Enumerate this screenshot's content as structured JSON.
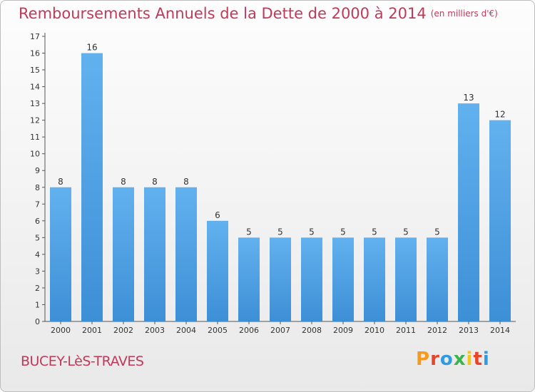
{
  "chart_data": {
    "type": "bar",
    "title": "Remboursements Annuels de la Dette de 2000 à 2014",
    "unit": "(en milliers d'€)",
    "categories": [
      "2000",
      "2001",
      "2002",
      "2003",
      "2004",
      "2005",
      "2006",
      "2007",
      "2008",
      "2009",
      "2010",
      "2011",
      "2012",
      "2013",
      "2014"
    ],
    "values": [
      8,
      16,
      8,
      8,
      8,
      6,
      5,
      5,
      5,
      5,
      5,
      5,
      5,
      13,
      12
    ],
    "yticks": [
      "0",
      "1",
      "2",
      "3",
      "4",
      "5",
      "6",
      "7",
      "8",
      "9",
      "10",
      "11",
      "12",
      "13",
      "14",
      "15",
      "16",
      "17"
    ],
    "ylim": [
      0,
      17
    ],
    "grid": false,
    "bar_color": "#3d8fd6"
  },
  "footer": {
    "place": "BUCEY-LèS-TRAVES",
    "logo_letters": [
      "P",
      "r",
      "o",
      "x",
      "i",
      "t",
      "i"
    ],
    "logo_colors": [
      "#f59a1e",
      "#e8442b",
      "#2f9be0",
      "#3bb54a",
      "#f5c518",
      "#e8442b",
      "#2f9be0"
    ]
  }
}
